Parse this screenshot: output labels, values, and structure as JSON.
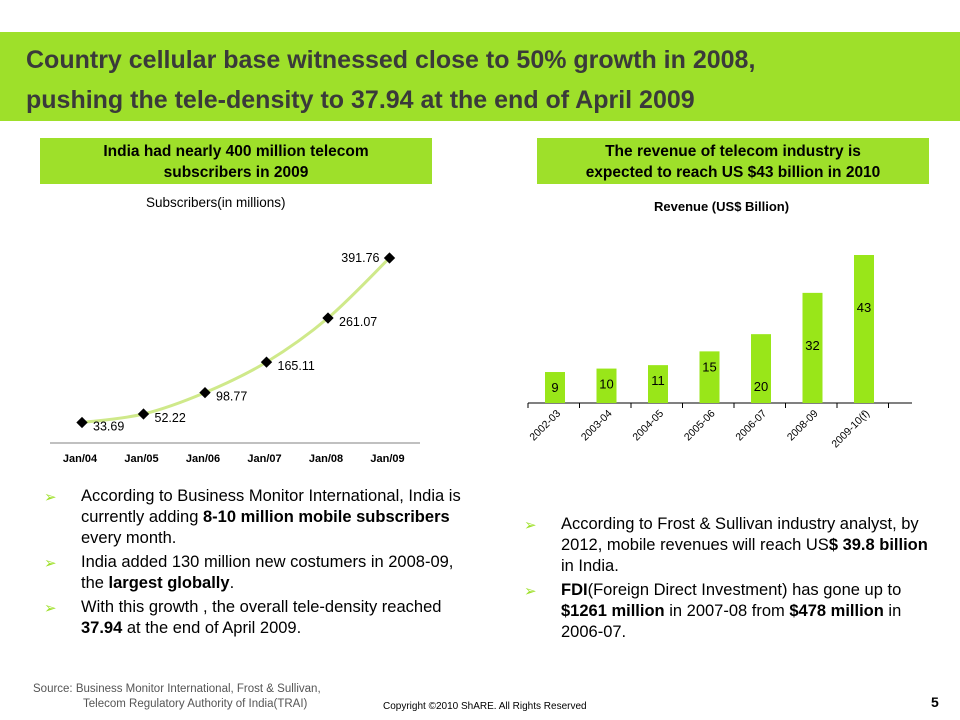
{
  "title": {
    "line1": "Country cellular base witnessed close to 50% growth in 2008,",
    "line2": "pushing the tele-density to 37.94 at the end of April 2009"
  },
  "left_callout": {
    "line1": "India had nearly 400 million telecom",
    "line2": "subscribers in 2009"
  },
  "right_callout": {
    "line1": "The revenue of telecom industry is",
    "line2": "expected to reach US $43 billion in 2010"
  },
  "left_bullets": [
    {
      "parts": [
        {
          "text": "According to Business Monitor International, India is currently adding ",
          "bold": false
        },
        {
          "text": "8-10 million mobile subscribers",
          "bold": true
        },
        {
          "text": " every month.",
          "bold": false
        }
      ]
    },
    {
      "parts": [
        {
          "text": "India added 130 million new costumers in 2008-09, the ",
          "bold": false
        },
        {
          "text": "largest globally",
          "bold": true
        },
        {
          "text": ".",
          "bold": false
        }
      ]
    },
    {
      "parts": [
        {
          "text": "With this growth , the overall tele-density reached ",
          "bold": false
        },
        {
          "text": "37.94",
          "bold": true
        },
        {
          "text": " at the end of April 2009.",
          "bold": false
        }
      ]
    }
  ],
  "right_bullets": [
    {
      "parts": [
        {
          "text": "According to Frost & Sullivan industry analyst, by 2012, mobile revenues will reach US",
          "bold": false
        },
        {
          "text": "$ 39.8 billion",
          "bold": true
        },
        {
          "text": " in India.",
          "bold": false
        }
      ]
    },
    {
      "parts": [
        {
          "text": "FDI",
          "bold": true
        },
        {
          "text": "(Foreign Direct Investment) has gone up to ",
          "bold": false
        },
        {
          "text": "$1261 million",
          "bold": true
        },
        {
          "text": " in 2007-08 from ",
          "bold": false
        },
        {
          "text": "$478 million",
          "bold": true
        },
        {
          "text": " in 2006-07.",
          "bold": false
        }
      ]
    }
  ],
  "source": {
    "line1": "Source: Business Monitor International, Frost & Sullivan,",
    "line2": "Telecom Regulatory Authority of India(TRAI)"
  },
  "copyright": "Copyright ©2010 ShARE. All Rights Reserved",
  "page_number": "5",
  "colors": {
    "accent": "#9ee02a",
    "line": "#cfe98a",
    "bar": "#99e619",
    "title_text": "#3a3a3a"
  },
  "icons": {
    "bullet": "arrow-bullet-icon"
  },
  "chart_data": [
    {
      "type": "line",
      "title": "Subscribers(in millions)",
      "categories": [
        "Jan/04",
        "Jan/05",
        "Jan/06",
        "Jan/07",
        "Jan/08",
        "Jan/09"
      ],
      "values": [
        33.69,
        52.22,
        98.77,
        165.11,
        261.07,
        391.76
      ],
      "value_labels": [
        "33.69",
        "52.22",
        "98.77",
        "165.11",
        "261.07",
        "391.76"
      ],
      "ylim": [
        0,
        420
      ],
      "grid": false
    },
    {
      "type": "bar",
      "title": "Revenue (US$ Billion)",
      "categories": [
        "2002-03",
        "2003-04",
        "2004-05",
        "2005-06",
        "2006-07",
        "2008-09",
        "2009-10(f)"
      ],
      "values": [
        9,
        10,
        11,
        15,
        20,
        32,
        43
      ],
      "ylim": [
        0,
        45
      ],
      "grid": false
    }
  ]
}
